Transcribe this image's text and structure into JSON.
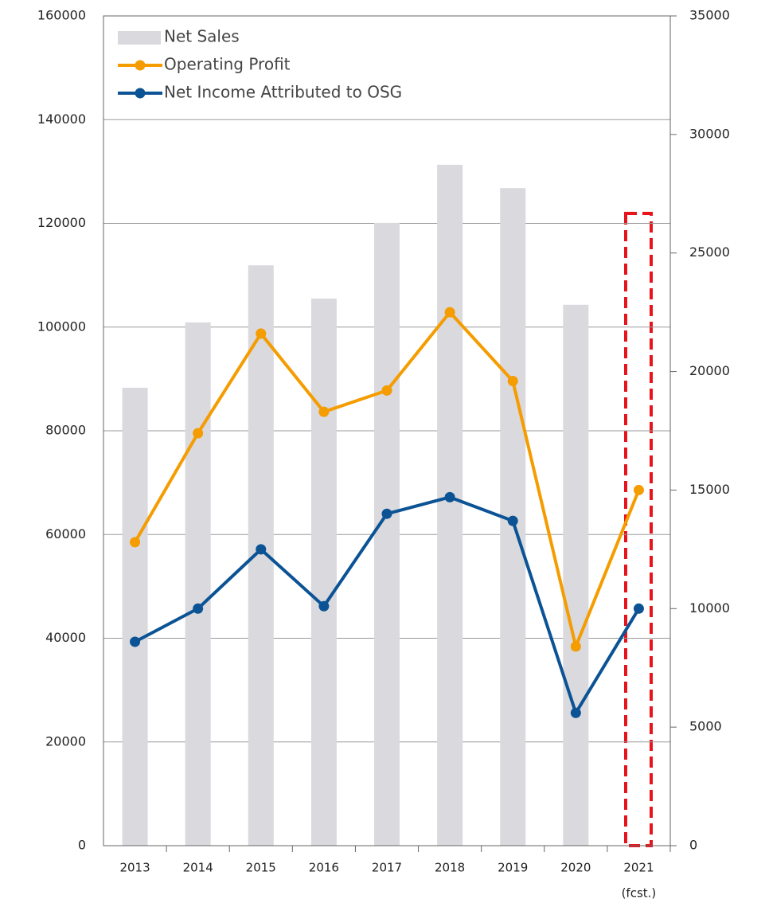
{
  "chart_data": {
    "type": "bar_line",
    "categories": [
      "2013",
      "2014",
      "2015",
      "2016",
      "2017",
      "2018",
      "2019",
      "2020",
      "2021"
    ],
    "annotation": "(fcst.)",
    "series": [
      {
        "name": "Net Sales",
        "type": "bar",
        "color": "#d9d9de",
        "values": [
          88300,
          100900,
          111900,
          105500,
          120100,
          131300,
          126800,
          104300,
          null
        ]
      },
      {
        "name": "Operating Profit",
        "type": "line",
        "axis": "y2",
        "color": "#f59c00",
        "values": [
          12800,
          17400,
          21600,
          18300,
          19200,
          22500,
          19600,
          8400,
          15000
        ]
      },
      {
        "name": "Net Income Attributed to OSG",
        "type": "line",
        "axis": "y2",
        "color": "#0b5394",
        "values": [
          8600,
          10000,
          12500,
          10100,
          14000,
          14700,
          13700,
          5600,
          10000
        ]
      }
    ],
    "ylim": [
      0,
      160000
    ],
    "yticks": [
      0,
      20000,
      40000,
      60000,
      80000,
      100000,
      120000,
      140000,
      160000
    ],
    "y2lim": [
      0,
      35000
    ],
    "y2ticks": [
      0,
      5000,
      10000,
      15000,
      20000,
      25000,
      30000,
      35000
    ],
    "grid": true,
    "legend": "upper left"
  }
}
